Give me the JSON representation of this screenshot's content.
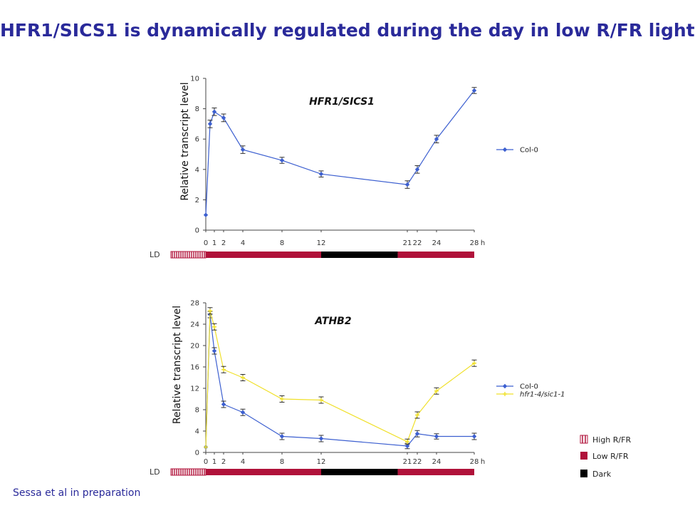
{
  "page_title": "HFR1/SICS1 is dynamically regulated during the day in low R/FR light",
  "credit": "Sessa et al in preparation",
  "colors": {
    "title": "#2a2a9a",
    "col0": "#3c5fd0",
    "hfr1": "#f0e02a",
    "low_rfr": "#b0123a",
    "dark": "#000000",
    "high_rfr": "#b0123a"
  },
  "light_key": [
    {
      "key": "high",
      "label": "High R/FR"
    },
    {
      "key": "low",
      "label": "Low R/FR"
    },
    {
      "key": "dark",
      "label": "Dark"
    }
  ],
  "chart_data": [
    {
      "type": "line",
      "title": "HFR1/SICS1",
      "ylabel": "Relative transcript level",
      "xlabel": "",
      "x_unit": "h",
      "x_tick_labels": [
        0,
        1,
        2,
        4,
        8,
        12,
        21,
        22,
        24,
        28
      ],
      "xlim": [
        0,
        28
      ],
      "ylim": [
        0,
        10
      ],
      "y_ticks": [
        0,
        2,
        4,
        6,
        8,
        10
      ],
      "grid": false,
      "legend_position": "right",
      "light_regime_label": "LD",
      "light_regime": [
        {
          "state": "high",
          "start": -4,
          "end": 0
        },
        {
          "state": "low",
          "start": 0,
          "end": 12
        },
        {
          "state": "dark",
          "start": 12,
          "end": 20
        },
        {
          "state": "low",
          "start": 20,
          "end": 28
        }
      ],
      "series": [
        {
          "name": "Col-0",
          "color": "#3c5fd0",
          "x": [
            0,
            0.5,
            1,
            2,
            4,
            8,
            12,
            21,
            22,
            24,
            28
          ],
          "y": [
            1.0,
            7.0,
            7.8,
            7.4,
            5.3,
            4.6,
            3.7,
            3.0,
            4.0,
            6.0,
            9.2
          ],
          "err": [
            0.0,
            0.25,
            0.25,
            0.25,
            0.25,
            0.2,
            0.2,
            0.25,
            0.25,
            0.25,
            0.2
          ]
        }
      ]
    },
    {
      "type": "line",
      "title": "ATHB2",
      "ylabel": "Relative transcript level",
      "xlabel": "",
      "x_unit": "h",
      "x_tick_labels": [
        0,
        1,
        2,
        4,
        8,
        12,
        21,
        22,
        24,
        28
      ],
      "xlim": [
        0,
        28
      ],
      "ylim": [
        0,
        28
      ],
      "y_ticks": [
        0,
        4,
        8,
        12,
        16,
        20,
        24,
        28
      ],
      "grid": false,
      "legend_position": "right",
      "light_regime_label": "LD",
      "light_regime": [
        {
          "state": "high",
          "start": -4,
          "end": 0
        },
        {
          "state": "low",
          "start": 0,
          "end": 12
        },
        {
          "state": "dark",
          "start": 12,
          "end": 20
        },
        {
          "state": "low",
          "start": 20,
          "end": 28
        }
      ],
      "series": [
        {
          "name": "Col-0",
          "color": "#3c5fd0",
          "x": [
            0,
            0.5,
            1,
            2,
            4,
            8,
            12,
            21,
            22,
            24,
            28
          ],
          "y": [
            1.0,
            25.8,
            19.0,
            9.0,
            7.5,
            3.0,
            2.6,
            1.2,
            3.5,
            3.0,
            3.0
          ],
          "err": [
            0.0,
            0.6,
            0.6,
            0.6,
            0.6,
            0.6,
            0.6,
            0.5,
            0.6,
            0.5,
            0.6
          ]
        },
        {
          "name": "hfr1-4/sic1-1",
          "color": "#f0e02a",
          "x": [
            0,
            0.5,
            1,
            2,
            4,
            8,
            12,
            21,
            22,
            24,
            28
          ],
          "y": [
            1.0,
            26.5,
            23.5,
            15.5,
            14.0,
            10.0,
            9.8,
            2.0,
            7.0,
            11.5,
            16.7
          ],
          "err": [
            0.0,
            0.6,
            0.6,
            0.6,
            0.6,
            0.6,
            0.6,
            0.5,
            0.6,
            0.6,
            0.6
          ]
        }
      ]
    }
  ]
}
